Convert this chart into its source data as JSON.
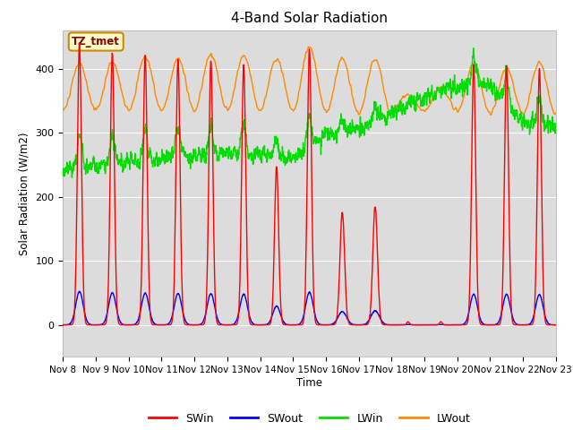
{
  "title": "4-Band Solar Radiation",
  "ylabel": "Solar Radiation (W/m2)",
  "xlabel": "Time",
  "ylim": [
    -50,
    460
  ],
  "xlim": [
    0,
    360
  ],
  "bg_color": "#dcdcdc",
  "fig_bg": "#ffffff",
  "grid_color": "#ffffff",
  "annotation_label": "TZ_tmet",
  "annotation_bg": "#ffffcc",
  "annotation_border": "#cc8800",
  "annotation_text_color": "#880000",
  "line_colors": {
    "SWin": "#ff0000",
    "SWout": "#0000ff",
    "LWin": "#00dd00",
    "LWout": "#ff8800"
  },
  "tick_labels": [
    "Nov 8",
    "Nov 9",
    "Nov 10",
    "Nov 11",
    "Nov 12",
    "Nov 13",
    "Nov 14",
    "Nov 15",
    "Nov 16",
    "Nov 17",
    "Nov 18",
    "Nov 19",
    "Nov 20",
    "Nov 21",
    "Nov 22",
    "Nov 23"
  ],
  "tick_positions": [
    0,
    24,
    48,
    72,
    96,
    120,
    144,
    168,
    192,
    216,
    240,
    264,
    288,
    312,
    336,
    360
  ],
  "n_points": 2160,
  "hours_total": 360
}
